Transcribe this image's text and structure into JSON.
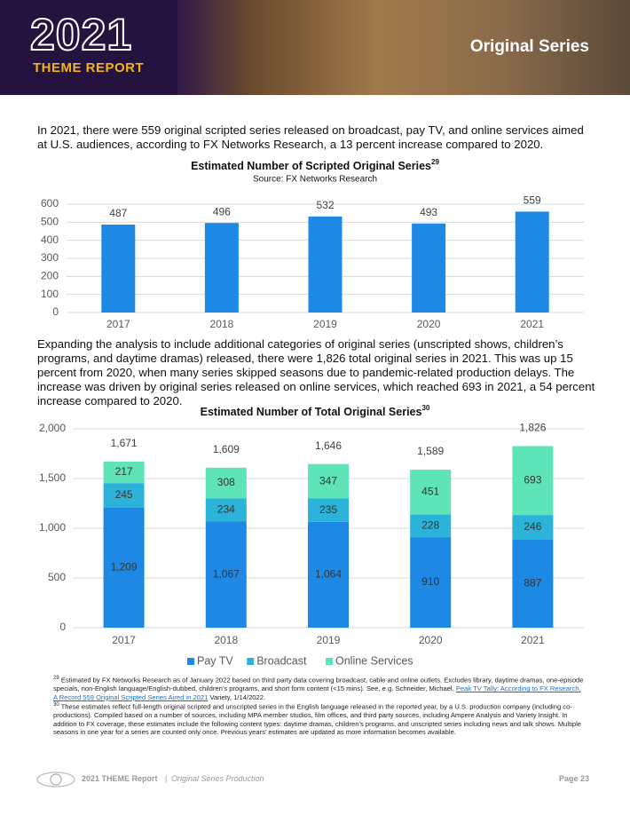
{
  "header": {
    "year": "2021",
    "subtitle": "THEME REPORT",
    "section": "Original Series"
  },
  "paragraphs": [
    "In 2021, there were 559 original scripted series released on broadcast, pay TV, and online services aimed at U.S. audiences, according to FX Networks Research, a 13 percent increase compared to 2020.",
    "Expanding the analysis to include additional categories of original series (unscripted shows, children’s programs, and daytime dramas) released, there were 1,826 total original series in 2021. This was up 15 percent from 2020, when many series skipped seasons due to pandemic-related production delays. The increase was driven by original series released on online services, which reached 693 in 2021, a 54 percent increase compared to 2020."
  ],
  "chart_data": [
    {
      "type": "bar",
      "title": "Estimated Number of Scripted Original Series",
      "title_sup": "29",
      "subtitle": "Source: FX Networks Research",
      "categories": [
        "2017",
        "2018",
        "2019",
        "2020",
        "2021"
      ],
      "values": [
        487,
        496,
        532,
        493,
        559
      ],
      "color": "#1e88e5",
      "ylim": [
        0,
        600
      ],
      "yticks": [
        0,
        100,
        200,
        300,
        400,
        500,
        600
      ],
      "grid": true
    },
    {
      "type": "stacked_bar",
      "title": "Estimated Number of Total Original Series",
      "title_sup": "30",
      "categories": [
        "2017",
        "2018",
        "2019",
        "2020",
        "2021"
      ],
      "series": [
        {
          "name": "Pay TV",
          "color": "#1e88e5",
          "values": [
            1209,
            1067,
            1064,
            910,
            887
          ],
          "value_labels": [
            "1,209",
            "1,067",
            "1,064",
            "910",
            "887"
          ]
        },
        {
          "name": "Broadcast",
          "color": "#2bb3d9",
          "values": [
            245,
            234,
            235,
            228,
            246
          ]
        },
        {
          "name": "Online Services",
          "color": "#5fe3b9",
          "values": [
            217,
            308,
            347,
            451,
            693
          ]
        }
      ],
      "totals": [
        1671,
        1609,
        1646,
        1589,
        1826
      ],
      "total_labels": [
        "1,671",
        "1,609",
        "1,646",
        "1,589",
        "1,826"
      ],
      "ylim": [
        0,
        2000
      ],
      "yticks": [
        0,
        500,
        {
          "value": 1000,
          "label": "1,000"
        },
        {
          "value": 1500,
          "label": "1,500"
        },
        {
          "value": 2000,
          "label": "2,000"
        }
      ],
      "grid": true,
      "legend": "bottom"
    }
  ],
  "footnotes": [
    {
      "number": "29",
      "text": "Estimated by FX Networks Research as of January 2022 based on third party data covering broadcast, cable and online outlets. Excludes library, daytime dramas, one-episode specials, non-English language/English-dubbed, children’s programs, and short form content (<15 mins). See, e.g. Schneider, Michael, ",
      "link": "Peak TV Tally: According to FX Research, A Record 559 Original Scripted Series Aired in 2021",
      "after": " Variety, 1/14/2022."
    },
    {
      "number": "30",
      "text": "These estimates reflect full-length original scripted and unscripted series in the English language released in the reported year, by a U.S. production company (including co-productions). Compiled based on a number of sources, including MPA member studios, film offices, and third party sources, including Ampere Analysis and Variety Insight. In addition to FX coverage, these estimates include the following content types: daytime dramas, children’s programs, and unscripted series including news and talk shows. Multiple seasons in one year for a series are counted only once. Previous years’ estimates are updated as more information becomes available."
    }
  ],
  "footer": {
    "report": "2021 THEME Report",
    "separator": "|",
    "section": "Original Series Production",
    "page": "Page 23"
  }
}
